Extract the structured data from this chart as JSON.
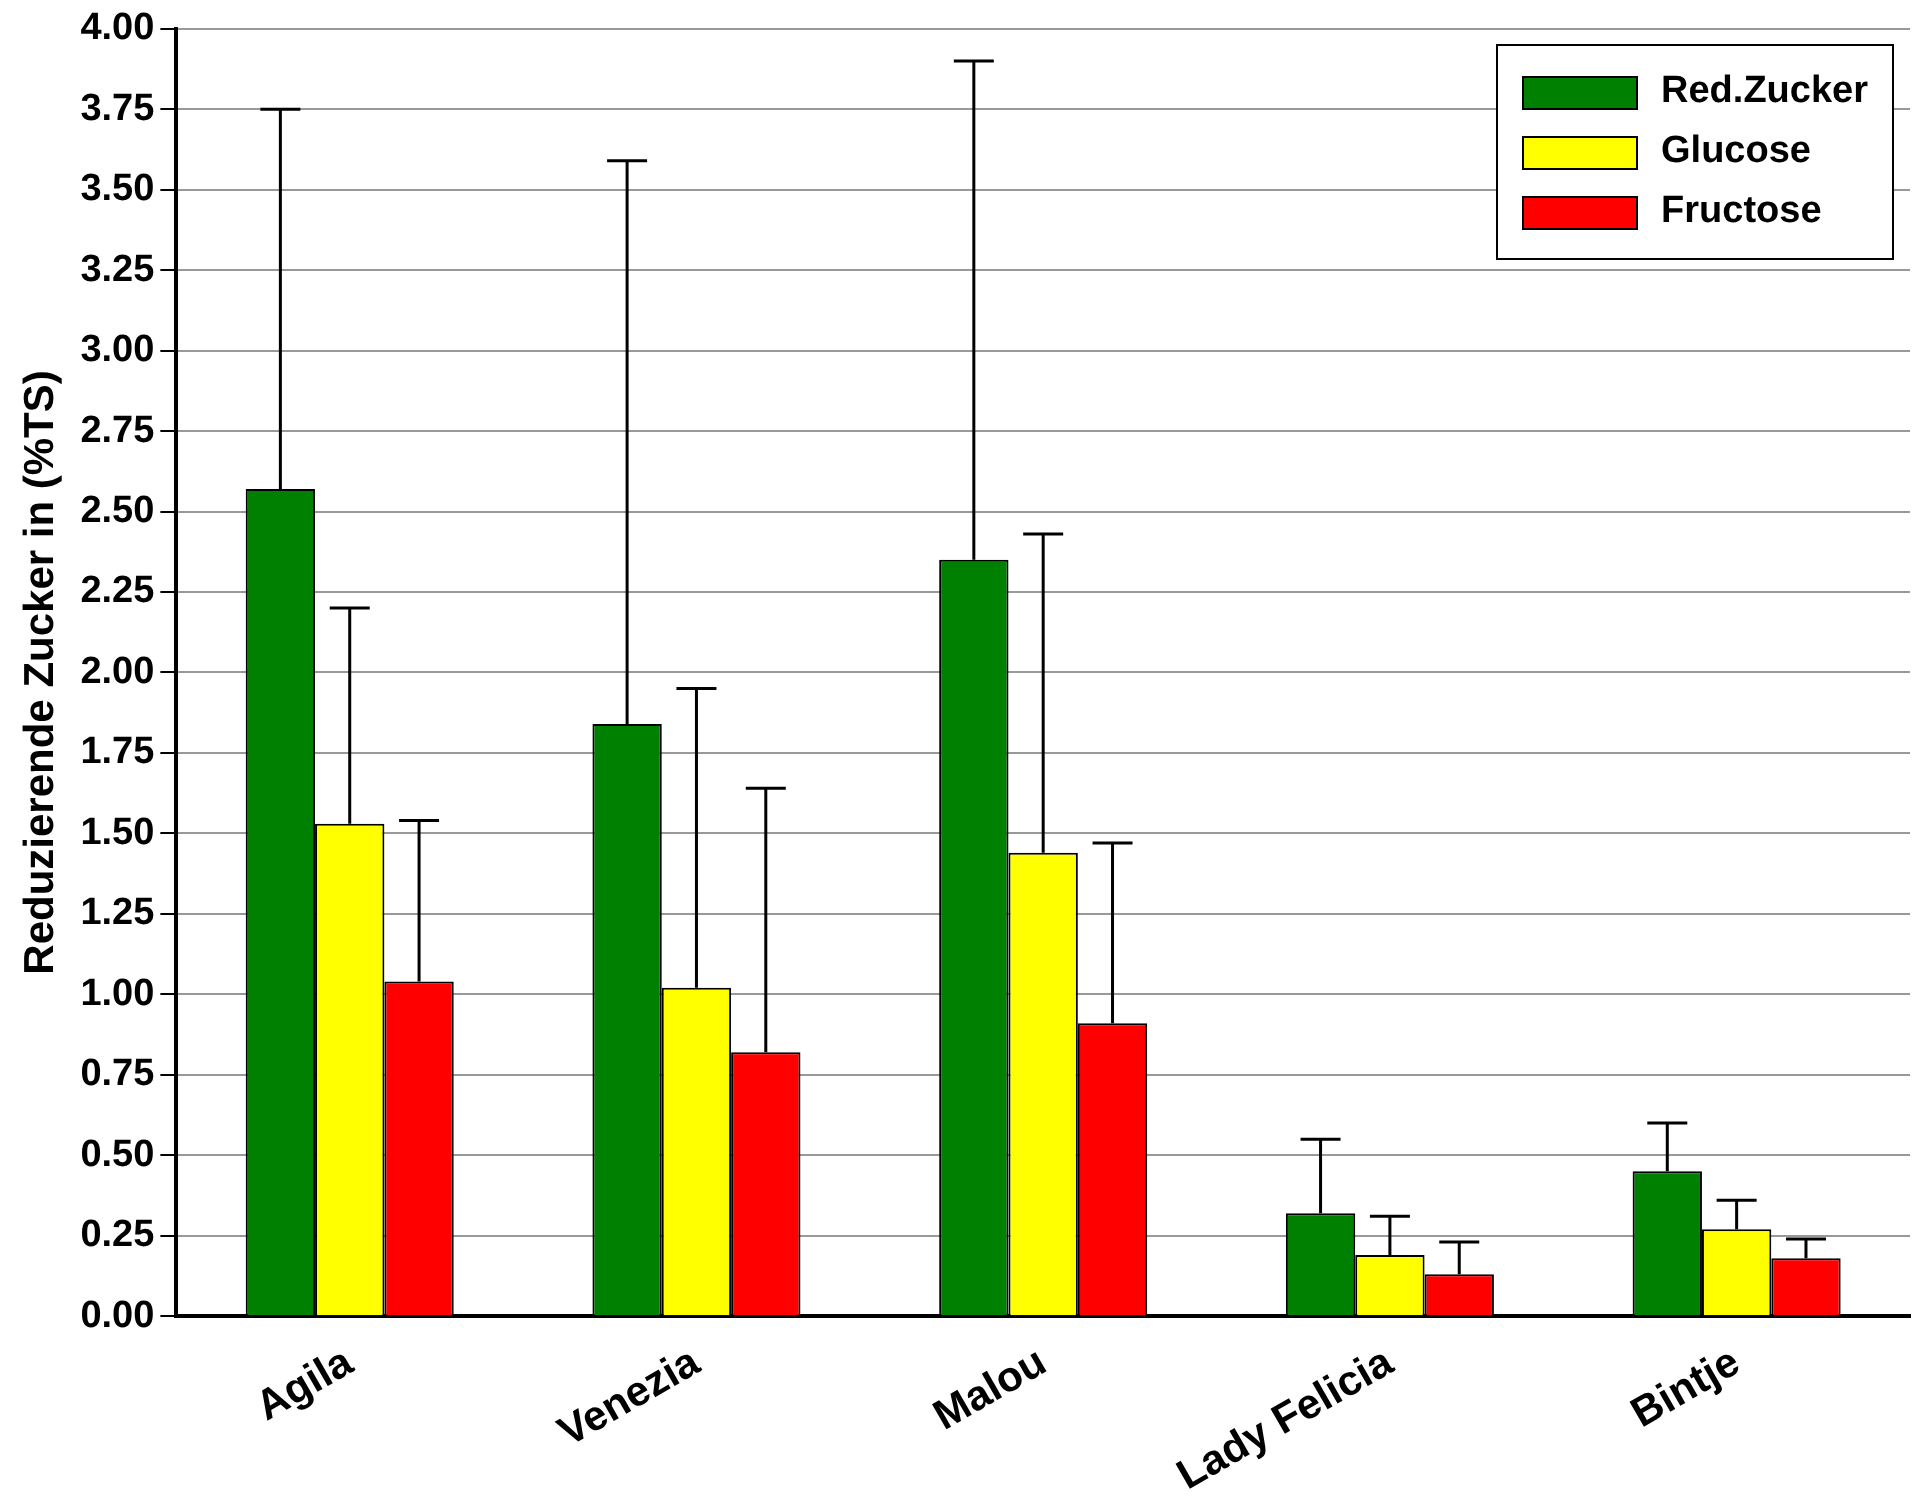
{
  "chart_data": {
    "type": "bar",
    "ylabel": "Reduzierende Zucker in (%TS)",
    "categories": [
      "Agila",
      "Venezia",
      "Malou",
      "Lady Felicia",
      "Bintje"
    ],
    "series": [
      {
        "name": "Red.Zucker",
        "color": "#008000",
        "values": [
          2.57,
          1.84,
          2.35,
          0.32,
          0.45
        ],
        "errors": [
          [
            2.57,
            3.75
          ],
          [
            1.84,
            3.59
          ],
          [
            2.35,
            3.9
          ],
          [
            0.32,
            0.55
          ],
          [
            0.45,
            0.6
          ]
        ]
      },
      {
        "name": "Glucose",
        "color": "#ffff00",
        "values": [
          1.53,
          1.02,
          1.44,
          0.19,
          0.27
        ],
        "errors": [
          [
            1.53,
            2.2
          ],
          [
            1.02,
            1.95
          ],
          [
            1.44,
            2.43
          ],
          [
            0.19,
            0.31
          ],
          [
            0.27,
            0.36
          ]
        ]
      },
      {
        "name": "Fructose",
        "color": "#ff0000",
        "values": [
          1.04,
          0.82,
          0.91,
          0.13,
          0.18
        ],
        "errors": [
          [
            1.04,
            1.54
          ],
          [
            0.82,
            1.64
          ],
          [
            0.91,
            1.47
          ],
          [
            0.13,
            0.23
          ],
          [
            0.18,
            0.24
          ]
        ]
      }
    ],
    "ylim": [
      0,
      4
    ],
    "yticks": [
      {
        "value": 0,
        "label": "0.00"
      },
      {
        "value": 0.25,
        "label": "0.25"
      },
      {
        "value": 0.5,
        "label": "0.50"
      },
      {
        "value": 0.75,
        "label": "0.75"
      },
      {
        "value": 1,
        "label": "1.00"
      },
      {
        "value": 1.25,
        "label": "1.25"
      },
      {
        "value": 1.5,
        "label": "1.50"
      },
      {
        "value": 1.75,
        "label": "1.75"
      },
      {
        "value": 2,
        "label": "2.00"
      },
      {
        "value": 2.25,
        "label": "2.25"
      },
      {
        "value": 2.5,
        "label": "2.50"
      },
      {
        "value": 2.75,
        "label": "2.75"
      },
      {
        "value": 3,
        "label": "3.00"
      },
      {
        "value": 3.25,
        "label": "3.25"
      },
      {
        "value": 3.5,
        "label": "3.50"
      },
      {
        "value": 3.75,
        "label": "3.75"
      },
      {
        "value": 4,
        "label": "4.00"
      }
    ],
    "grid": "y",
    "legend": "top right"
  }
}
